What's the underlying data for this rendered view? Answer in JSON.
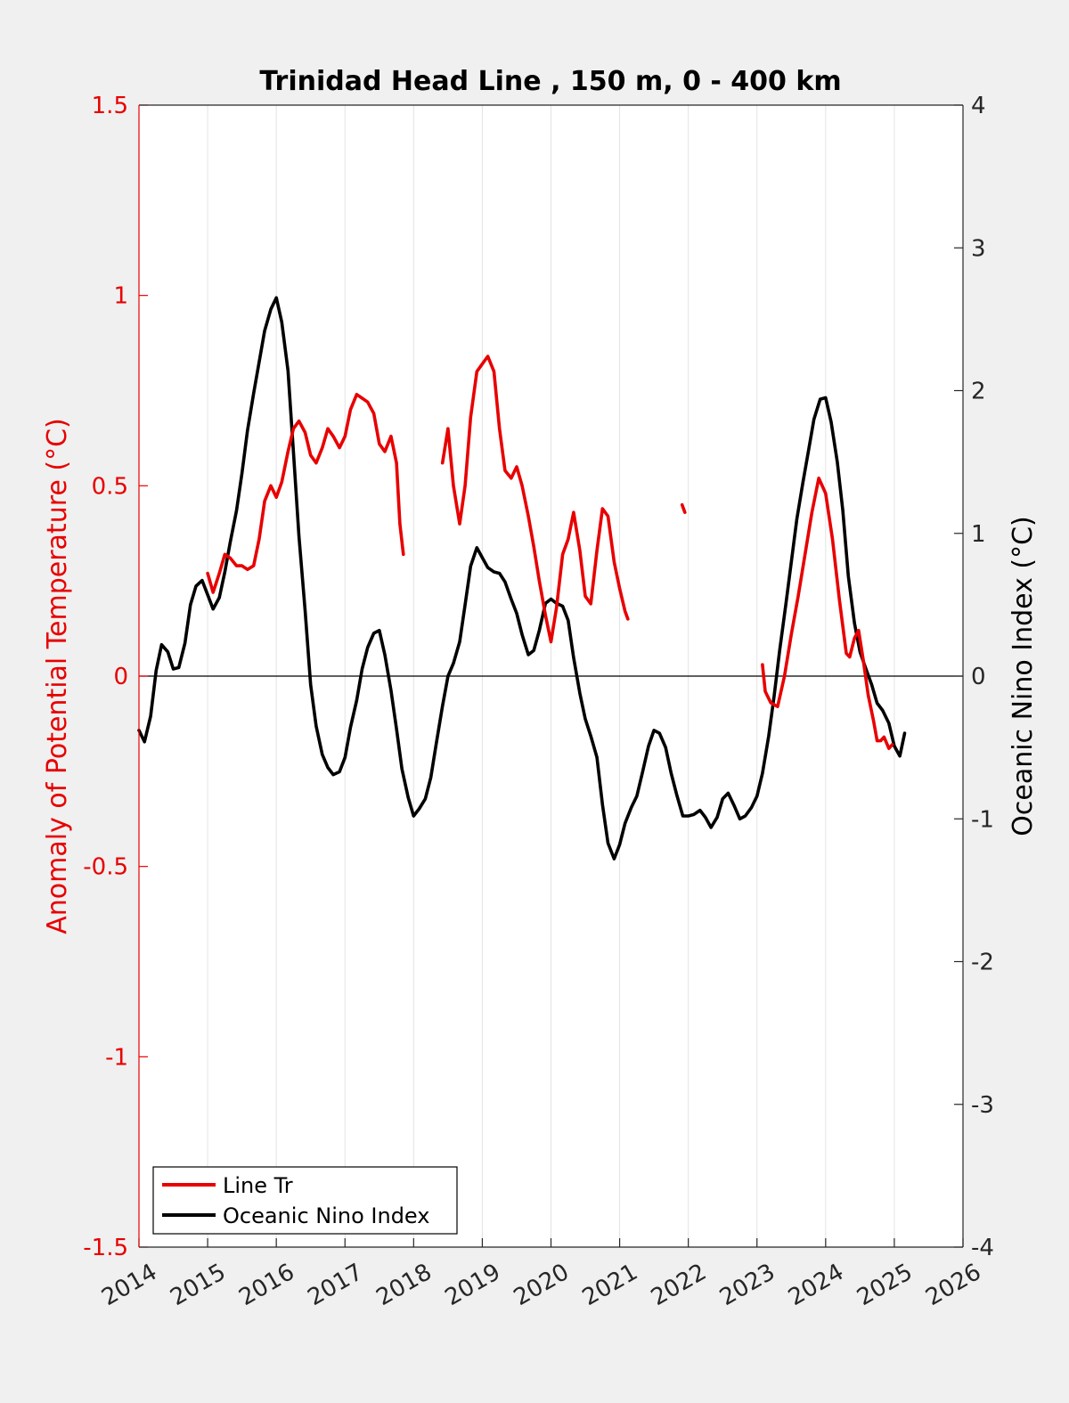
{
  "chart_data": {
    "type": "line",
    "title": "Trinidad Head Line , 150 m, 0 - 400 km",
    "xlabel": "",
    "ylabel_left": "Anomaly of Potential Temperature (°C)",
    "ylabel_right": "Oceanic Nino Index (°C)",
    "xlim": [
      2014,
      2026
    ],
    "ylim_left": [
      -1.5,
      1.5
    ],
    "ylim_right": [
      -4,
      4
    ],
    "x_ticks": [
      "2014",
      "2015",
      "2016",
      "2017",
      "2018",
      "2019",
      "2020",
      "2021",
      "2022",
      "2023",
      "2024",
      "2025",
      "2026"
    ],
    "y_left_ticks": [
      "1.5",
      "1",
      "0.5",
      "0",
      "-0.5",
      "-1",
      "-1.5"
    ],
    "y_right_ticks": [
      "4",
      "3",
      "2",
      "1",
      "0",
      "-1",
      "-2",
      "-3",
      "-4"
    ],
    "grid": "vertical",
    "legend_position": "bottom-left",
    "colors": {
      "left_axis": "#e80000",
      "series_red": "#e80000",
      "series_black": "#000000",
      "axes_bg": "#ffffff",
      "figure_bg": "#f0f0f0"
    },
    "series": [
      {
        "name": "Line Tr",
        "axis": "left",
        "color": "#e80000",
        "segments": [
          [
            [
              2015.0,
              0.27
            ],
            [
              2015.08,
              0.22
            ],
            [
              2015.17,
              0.27
            ],
            [
              2015.25,
              0.32
            ],
            [
              2015.33,
              0.31
            ],
            [
              2015.42,
              0.29
            ],
            [
              2015.5,
              0.29
            ],
            [
              2015.58,
              0.28
            ],
            [
              2015.67,
              0.29
            ],
            [
              2015.75,
              0.36
            ],
            [
              2015.83,
              0.46
            ],
            [
              2015.92,
              0.5
            ],
            [
              2016.0,
              0.47
            ],
            [
              2016.08,
              0.51
            ],
            [
              2016.17,
              0.59
            ],
            [
              2016.25,
              0.65
            ],
            [
              2016.33,
              0.67
            ],
            [
              2016.42,
              0.64
            ],
            [
              2016.5,
              0.58
            ],
            [
              2016.58,
              0.56
            ],
            [
              2016.67,
              0.6
            ],
            [
              2016.75,
              0.65
            ],
            [
              2016.83,
              0.63
            ],
            [
              2016.92,
              0.6
            ],
            [
              2017.0,
              0.63
            ],
            [
              2017.08,
              0.7
            ],
            [
              2017.17,
              0.74
            ],
            [
              2017.25,
              0.73
            ],
            [
              2017.33,
              0.72
            ],
            [
              2017.42,
              0.69
            ],
            [
              2017.5,
              0.61
            ],
            [
              2017.58,
              0.59
            ],
            [
              2017.67,
              0.63
            ],
            [
              2017.75,
              0.56
            ],
            [
              2017.8,
              0.4
            ],
            [
              2017.85,
              0.32
            ]
          ],
          [
            [
              2018.42,
              0.56
            ],
            [
              2018.5,
              0.65
            ],
            [
              2018.58,
              0.5
            ],
            [
              2018.67,
              0.4
            ],
            [
              2018.75,
              0.5
            ],
            [
              2018.83,
              0.68
            ],
            [
              2018.92,
              0.8
            ],
            [
              2019.0,
              0.82
            ],
            [
              2019.08,
              0.84
            ],
            [
              2019.17,
              0.8
            ],
            [
              2019.25,
              0.65
            ],
            [
              2019.33,
              0.54
            ],
            [
              2019.42,
              0.52
            ],
            [
              2019.5,
              0.55
            ],
            [
              2019.58,
              0.5
            ],
            [
              2019.67,
              0.42
            ],
            [
              2019.75,
              0.34
            ],
            [
              2019.83,
              0.25
            ],
            [
              2019.92,
              0.16
            ],
            [
              2020.0,
              0.09
            ],
            [
              2020.08,
              0.18
            ],
            [
              2020.17,
              0.32
            ],
            [
              2020.25,
              0.36
            ],
            [
              2020.33,
              0.43
            ],
            [
              2020.42,
              0.33
            ],
            [
              2020.5,
              0.21
            ],
            [
              2020.58,
              0.19
            ],
            [
              2020.67,
              0.33
            ],
            [
              2020.75,
              0.44
            ],
            [
              2020.83,
              0.42
            ],
            [
              2020.92,
              0.3
            ],
            [
              2021.0,
              0.23
            ],
            [
              2021.08,
              0.17
            ],
            [
              2021.12,
              0.15
            ]
          ],
          [
            [
              2021.91,
              0.45
            ],
            [
              2021.95,
              0.43
            ]
          ],
          [
            [
              2023.08,
              0.03
            ],
            [
              2023.12,
              -0.04
            ],
            [
              2023.2,
              -0.07
            ],
            [
              2023.3,
              -0.08
            ],
            [
              2023.4,
              0.0
            ],
            [
              2023.5,
              0.11
            ],
            [
              2023.6,
              0.21
            ],
            [
              2023.7,
              0.32
            ],
            [
              2023.8,
              0.43
            ],
            [
              2023.9,
              0.52
            ],
            [
              2024.0,
              0.48
            ],
            [
              2024.1,
              0.36
            ],
            [
              2024.2,
              0.2
            ],
            [
              2024.3,
              0.06
            ],
            [
              2024.35,
              0.05
            ],
            [
              2024.42,
              0.1
            ],
            [
              2024.48,
              0.12
            ],
            [
              2024.55,
              0.04
            ],
            [
              2024.62,
              -0.05
            ],
            [
              2024.7,
              -0.12
            ],
            [
              2024.75,
              -0.17
            ],
            [
              2024.8,
              -0.17
            ],
            [
              2024.85,
              -0.16
            ],
            [
              2024.92,
              -0.19
            ],
            [
              2024.97,
              -0.18
            ]
          ]
        ]
      },
      {
        "name": "Oceanic Nino Index",
        "axis": "right",
        "color": "#000000",
        "segments": [
          [
            [
              2014.0,
              -0.38
            ],
            [
              2014.08,
              -0.46
            ],
            [
              2014.17,
              -0.28
            ],
            [
              2014.25,
              0.04
            ],
            [
              2014.33,
              0.22
            ],
            [
              2014.42,
              0.17
            ],
            [
              2014.5,
              0.05
            ],
            [
              2014.58,
              0.06
            ],
            [
              2014.67,
              0.23
            ],
            [
              2014.75,
              0.5
            ],
            [
              2014.83,
              0.63
            ],
            [
              2014.92,
              0.67
            ],
            [
              2015.0,
              0.57
            ],
            [
              2015.08,
              0.47
            ],
            [
              2015.17,
              0.55
            ],
            [
              2015.25,
              0.73
            ],
            [
              2015.33,
              0.94
            ],
            [
              2015.42,
              1.16
            ],
            [
              2015.5,
              1.42
            ],
            [
              2015.58,
              1.72
            ],
            [
              2015.67,
              1.98
            ],
            [
              2015.75,
              2.2
            ],
            [
              2015.83,
              2.42
            ],
            [
              2015.92,
              2.57
            ],
            [
              2016.0,
              2.65
            ],
            [
              2016.08,
              2.48
            ],
            [
              2016.17,
              2.14
            ],
            [
              2016.25,
              1.57
            ],
            [
              2016.33,
              0.98
            ],
            [
              2016.42,
              0.46
            ],
            [
              2016.5,
              -0.06
            ],
            [
              2016.58,
              -0.35
            ],
            [
              2016.67,
              -0.55
            ],
            [
              2016.75,
              -0.64
            ],
            [
              2016.83,
              -0.69
            ],
            [
              2016.92,
              -0.67
            ],
            [
              2017.0,
              -0.57
            ],
            [
              2017.08,
              -0.36
            ],
            [
              2017.17,
              -0.17
            ],
            [
              2017.25,
              0.05
            ],
            [
              2017.33,
              0.2
            ],
            [
              2017.42,
              0.3
            ],
            [
              2017.5,
              0.32
            ],
            [
              2017.58,
              0.15
            ],
            [
              2017.67,
              -0.1
            ],
            [
              2017.75,
              -0.37
            ],
            [
              2017.83,
              -0.65
            ],
            [
              2017.92,
              -0.85
            ],
            [
              2018.0,
              -0.98
            ],
            [
              2018.08,
              -0.93
            ],
            [
              2018.17,
              -0.86
            ],
            [
              2018.25,
              -0.71
            ],
            [
              2018.33,
              -0.47
            ],
            [
              2018.42,
              -0.21
            ],
            [
              2018.5,
              0.0
            ],
            [
              2018.58,
              0.09
            ],
            [
              2018.67,
              0.24
            ],
            [
              2018.75,
              0.5
            ],
            [
              2018.83,
              0.77
            ],
            [
              2018.92,
              0.9
            ],
            [
              2019.0,
              0.83
            ],
            [
              2019.08,
              0.76
            ],
            [
              2019.17,
              0.73
            ],
            [
              2019.25,
              0.72
            ],
            [
              2019.33,
              0.66
            ],
            [
              2019.42,
              0.54
            ],
            [
              2019.5,
              0.44
            ],
            [
              2019.58,
              0.29
            ],
            [
              2019.67,
              0.15
            ],
            [
              2019.75,
              0.18
            ],
            [
              2019.83,
              0.32
            ],
            [
              2019.92,
              0.51
            ],
            [
              2020.0,
              0.54
            ],
            [
              2020.08,
              0.51
            ],
            [
              2020.17,
              0.49
            ],
            [
              2020.25,
              0.39
            ],
            [
              2020.33,
              0.13
            ],
            [
              2020.42,
              -0.12
            ],
            [
              2020.5,
              -0.3
            ],
            [
              2020.58,
              -0.42
            ],
            [
              2020.67,
              -0.57
            ],
            [
              2020.75,
              -0.9
            ],
            [
              2020.83,
              -1.17
            ],
            [
              2020.92,
              -1.28
            ],
            [
              2021.0,
              -1.18
            ],
            [
              2021.08,
              -1.03
            ],
            [
              2021.17,
              -0.92
            ],
            [
              2021.25,
              -0.84
            ],
            [
              2021.33,
              -0.68
            ],
            [
              2021.42,
              -0.49
            ],
            [
              2021.5,
              -0.38
            ],
            [
              2021.58,
              -0.4
            ],
            [
              2021.67,
              -0.5
            ],
            [
              2021.75,
              -0.68
            ],
            [
              2021.83,
              -0.83
            ],
            [
              2021.92,
              -0.98
            ],
            [
              2022.0,
              -0.98
            ],
            [
              2022.08,
              -0.97
            ],
            [
              2022.17,
              -0.94
            ],
            [
              2022.25,
              -0.99
            ],
            [
              2022.33,
              -1.06
            ],
            [
              2022.42,
              -0.99
            ],
            [
              2022.5,
              -0.86
            ],
            [
              2022.58,
              -0.82
            ],
            [
              2022.67,
              -0.91
            ],
            [
              2022.75,
              -1.0
            ],
            [
              2022.83,
              -0.98
            ],
            [
              2022.92,
              -0.92
            ],
            [
              2023.0,
              -0.84
            ],
            [
              2023.08,
              -0.68
            ],
            [
              2023.17,
              -0.42
            ],
            [
              2023.25,
              -0.14
            ],
            [
              2023.33,
              0.18
            ],
            [
              2023.42,
              0.5
            ],
            [
              2023.5,
              0.8
            ],
            [
              2023.58,
              1.1
            ],
            [
              2023.67,
              1.36
            ],
            [
              2023.75,
              1.58
            ],
            [
              2023.83,
              1.8
            ],
            [
              2023.92,
              1.94
            ],
            [
              2024.0,
              1.95
            ],
            [
              2024.08,
              1.78
            ],
            [
              2024.17,
              1.5
            ],
            [
              2024.25,
              1.16
            ],
            [
              2024.33,
              0.7
            ],
            [
              2024.42,
              0.37
            ],
            [
              2024.5,
              0.17
            ],
            [
              2024.58,
              0.06
            ],
            [
              2024.67,
              -0.06
            ],
            [
              2024.75,
              -0.19
            ],
            [
              2024.83,
              -0.24
            ],
            [
              2024.92,
              -0.33
            ],
            [
              2025.0,
              -0.49
            ],
            [
              2025.08,
              -0.56
            ],
            [
              2025.15,
              -0.4
            ]
          ]
        ]
      }
    ]
  },
  "legend": {
    "items": [
      {
        "label": "Line Tr",
        "color": "#e80000"
      },
      {
        "label": "Oceanic Nino Index",
        "color": "#000000"
      }
    ]
  }
}
